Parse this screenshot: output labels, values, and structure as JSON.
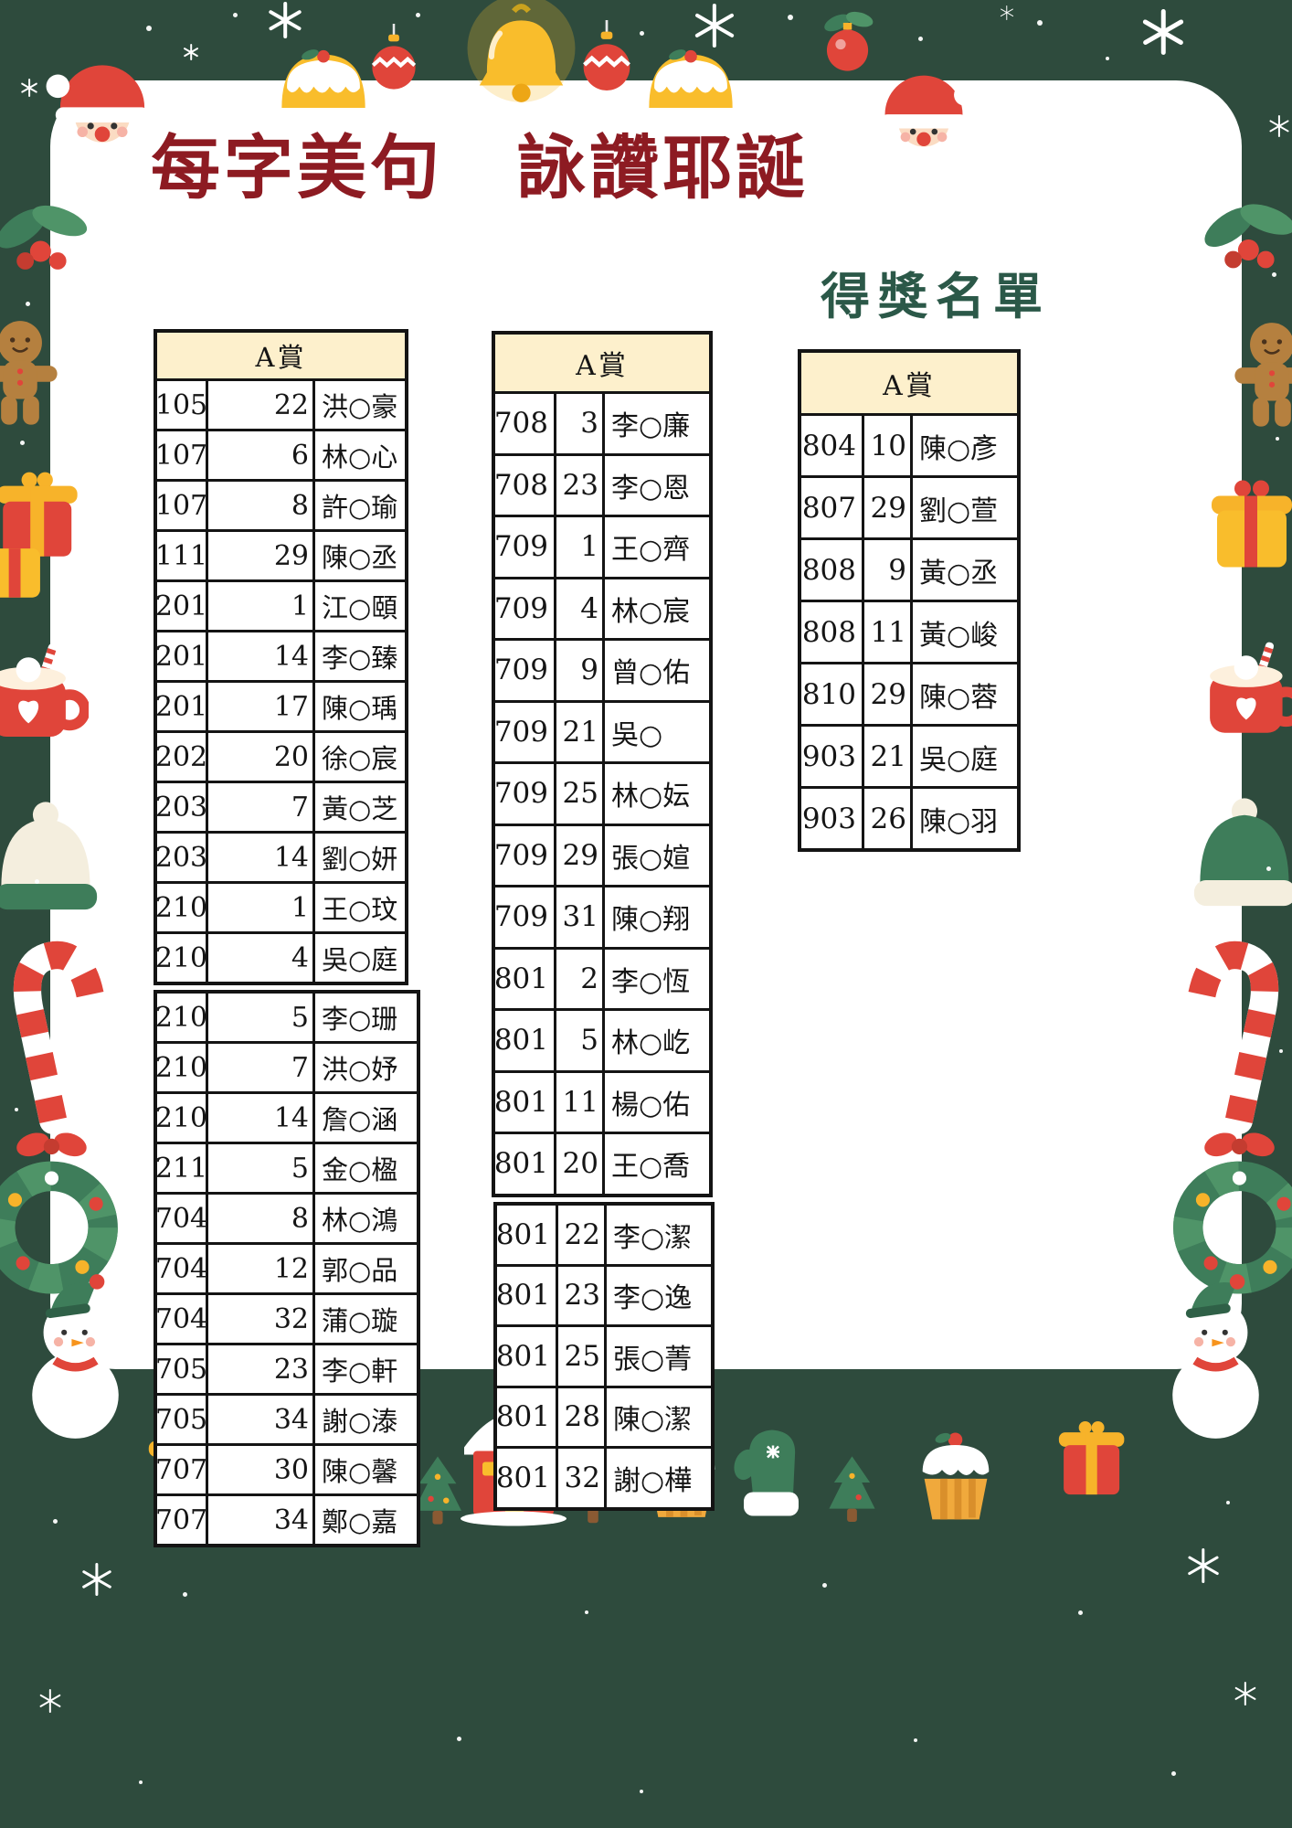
{
  "title": "每字美句　詠讚耶誕",
  "subtitle": "得獎名單",
  "tables": [
    {
      "header": "A賞",
      "blocks": [
        {
          "rows": [
            [
              "105",
              "22",
              "洪○豪"
            ],
            [
              "107",
              "6",
              "林○心"
            ],
            [
              "107",
              "8",
              "許○瑜"
            ],
            [
              "111",
              "29",
              "陳○丞"
            ],
            [
              "201",
              "1",
              "江○頤"
            ],
            [
              "201",
              "14",
              "李○臻"
            ],
            [
              "201",
              "17",
              "陳○瑀"
            ],
            [
              "202",
              "20",
              "徐○宸"
            ],
            [
              "203",
              "7",
              "黃○芝"
            ],
            [
              "203",
              "14",
              "劉○妍"
            ],
            [
              "210",
              "1",
              "王○玟"
            ],
            [
              "210",
              "4",
              "吳○庭"
            ]
          ]
        },
        {
          "rows": [
            [
              "210",
              "5",
              "李○珊"
            ],
            [
              "210",
              "7",
              "洪○妤"
            ],
            [
              "210",
              "14",
              "詹○涵"
            ],
            [
              "211",
              "5",
              "金○楹"
            ],
            [
              "704",
              "8",
              "林○鴻"
            ],
            [
              "704",
              "12",
              "郭○品"
            ],
            [
              "704",
              "32",
              "蒲○璇"
            ],
            [
              "705",
              "23",
              "李○軒"
            ],
            [
              "705",
              "34",
              "謝○溙"
            ],
            [
              "707",
              "30",
              "陳○馨"
            ],
            [
              "707",
              "34",
              "鄭○嘉"
            ]
          ]
        }
      ]
    },
    {
      "header": "A賞",
      "blocks": [
        {
          "rows": [
            [
              "708",
              "3",
              "李○廉"
            ],
            [
              "708",
              "23",
              "李○恩"
            ],
            [
              "709",
              "1",
              "王○齊"
            ],
            [
              "709",
              "4",
              "林○宸"
            ],
            [
              "709",
              "9",
              "曾○佑"
            ],
            [
              "709",
              "21",
              "吳○"
            ],
            [
              "709",
              "25",
              "林○妘"
            ],
            [
              "709",
              "29",
              "張○媗"
            ],
            [
              "709",
              "31",
              "陳○翔"
            ],
            [
              "801",
              "2",
              "李○恆"
            ],
            [
              "801",
              "5",
              "林○屹"
            ],
            [
              "801",
              "11",
              "楊○佑"
            ],
            [
              "801",
              "20",
              "王○喬"
            ]
          ]
        },
        {
          "rows": [
            [
              "801",
              "22",
              "李○潔"
            ],
            [
              "801",
              "23",
              "李○逸"
            ],
            [
              "801",
              "25",
              "張○菁"
            ],
            [
              "801",
              "28",
              "陳○潔"
            ],
            [
              "801",
              "32",
              "謝○樺"
            ]
          ]
        }
      ]
    },
    {
      "header": "A賞",
      "blocks": [
        {
          "rows": [
            [
              "804",
              "10",
              "陳○彥"
            ],
            [
              "807",
              "29",
              "劉○萱"
            ],
            [
              "808",
              "9",
              "黃○丞"
            ],
            [
              "808",
              "11",
              "黃○峻"
            ],
            [
              "810",
              "29",
              "陳○蓉"
            ],
            [
              "903",
              "21",
              "吳○庭"
            ],
            [
              "903",
              "26",
              "陳○羽"
            ]
          ]
        }
      ]
    }
  ],
  "colors": {
    "background": "#2e4b3d",
    "panel": "#ffffff",
    "table_header_bg": "#fdf0cc",
    "table_border": "#141414",
    "title": "#8d1b22",
    "subtitle": "#2b5848",
    "accent_red": "#e0453a",
    "accent_yellow": "#f9bd2c",
    "accent_green": "#3e7d5a"
  },
  "decor_icons": [
    "santa",
    "bell",
    "ornament",
    "pudding",
    "holly",
    "gingerbread",
    "gift",
    "cocoa-mug",
    "winter-hat",
    "candy-cane",
    "wreath",
    "snowman",
    "house",
    "tree",
    "mitten",
    "cupcake",
    "snowflake"
  ]
}
